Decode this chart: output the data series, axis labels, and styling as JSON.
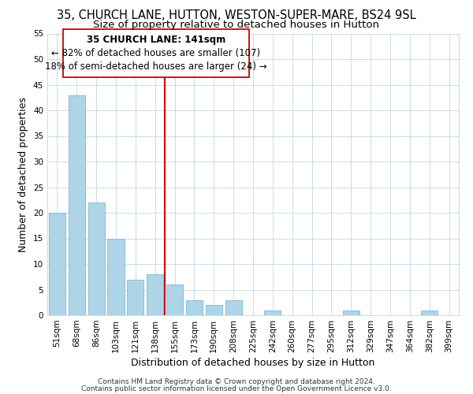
{
  "title": "35, CHURCH LANE, HUTTON, WESTON-SUPER-MARE, BS24 9SL",
  "subtitle": "Size of property relative to detached houses in Hutton",
  "xlabel": "Distribution of detached houses by size in Hutton",
  "ylabel": "Number of detached properties",
  "bar_color": "#aed4e8",
  "bar_edge_color": "#7ab8d4",
  "categories": [
    "51sqm",
    "68sqm",
    "86sqm",
    "103sqm",
    "121sqm",
    "138sqm",
    "155sqm",
    "173sqm",
    "190sqm",
    "208sqm",
    "225sqm",
    "242sqm",
    "260sqm",
    "277sqm",
    "295sqm",
    "312sqm",
    "329sqm",
    "347sqm",
    "364sqm",
    "382sqm",
    "399sqm"
  ],
  "values": [
    20,
    43,
    22,
    15,
    7,
    8,
    6,
    3,
    2,
    3,
    0,
    1,
    0,
    0,
    0,
    1,
    0,
    0,
    0,
    1,
    0
  ],
  "vline_x": 5.5,
  "vline_color": "#cc0000",
  "ylim": [
    0,
    55
  ],
  "yticks": [
    0,
    5,
    10,
    15,
    20,
    25,
    30,
    35,
    40,
    45,
    50,
    55
  ],
  "annotation_title": "35 CHURCH LANE: 141sqm",
  "annotation_line1": "← 82% of detached houses are smaller (107)",
  "annotation_line2": "18% of semi-detached houses are larger (24) →",
  "footer1": "Contains HM Land Registry data © Crown copyright and database right 2024.",
  "footer2": "Contains public sector information licensed under the Open Government Licence v3.0.",
  "background_color": "#ffffff",
  "grid_color": "#c8dcea",
  "title_fontsize": 10.5,
  "subtitle_fontsize": 9.5,
  "axis_label_fontsize": 9,
  "tick_fontsize": 7.5,
  "annotation_fontsize": 8.5,
  "footer_fontsize": 6.5
}
